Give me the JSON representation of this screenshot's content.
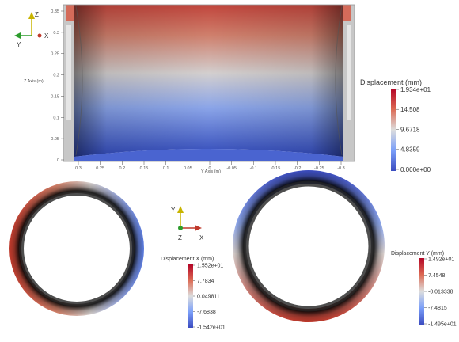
{
  "top_view": {
    "z_axis_label": "Z Axis (m)",
    "y_axis_label": "Y Axis (m)",
    "z_ticks": [
      "0.35",
      "0.3",
      "0.25",
      "0.2",
      "0.15",
      "0.1",
      "0.05",
      "0"
    ],
    "y_ticks": [
      "0.3",
      "0.25",
      "0.2",
      "0.15",
      "0.1",
      "0.05",
      "0",
      "-0.05",
      "-0.1",
      "-0.15",
      "-0.2",
      "-0.25",
      "-0.3"
    ],
    "orientation": {
      "z": "Z",
      "y": "Y",
      "x": "X"
    }
  },
  "legend_main": {
    "title": "Displacement (mm)",
    "labels": [
      "1.934e+01",
      "14.508",
      "9.6718",
      "4.8359",
      "0.000e+00"
    ]
  },
  "center_orientation": {
    "y": "Y",
    "z": "Z",
    "x": "X"
  },
  "legend_x": {
    "title": "Displacement X (mm)",
    "labels": [
      "1.552e+01",
      "7.7834",
      "0.049811",
      "-7.6838",
      "-1.542e+01"
    ]
  },
  "legend_y": {
    "title": "Displacement Y (mm)",
    "labels": [
      "1.492e+01",
      "7.4548",
      "-0.013338",
      "-7.4815",
      "-1.495e+01"
    ]
  },
  "colors": {
    "high": "#b40426",
    "mid": "#dddddd",
    "low": "#3b4cc0"
  }
}
